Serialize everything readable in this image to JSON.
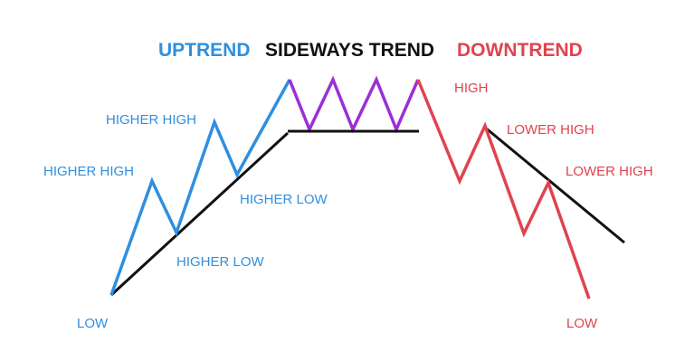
{
  "titles": {
    "uptrend": "UPTREND",
    "sideways": "SIDEWAYS TREND",
    "downtrend": "DOWNTREND"
  },
  "labels": {
    "low_left": "LOW",
    "higher_high_1": "HIGHER HIGH",
    "higher_high_2": "HIGHER HIGH",
    "higher_low_1": "HIGHER LOW",
    "higher_low_2": "HIGHER LOW",
    "high": "HIGH",
    "lower_high_1": "LOWER HIGH",
    "lower_high_2": "LOWER HIGH",
    "low_right": "LOW"
  },
  "colors": {
    "uptrend": "#2f8fe0",
    "sideways": "#9b2fd6",
    "downtrend": "#e0434f",
    "trendline": "#111111"
  }
}
